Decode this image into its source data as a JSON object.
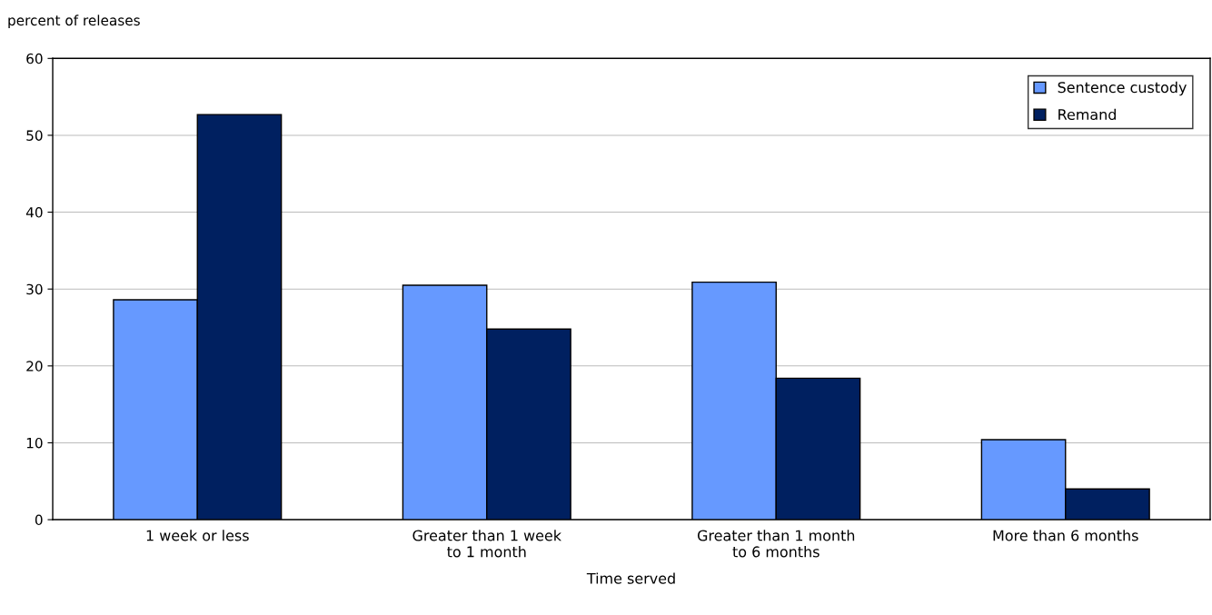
{
  "chart_data": {
    "type": "bar",
    "xlabel": "Time served",
    "ylabel": "percent of releases",
    "categories": [
      "1 week or less",
      "Greater than 1 week\nto 1 month",
      "Greater than 1 month\nto 6 months",
      "More than 6 months"
    ],
    "series": [
      {
        "name": "Sentence custody",
        "color": "#6699ff",
        "values": [
          28.6,
          30.5,
          30.9,
          10.4
        ]
      },
      {
        "name": "Remand",
        "color": "#002060",
        "values": [
          52.7,
          24.8,
          18.4,
          4.0
        ]
      }
    ],
    "ylim": [
      0,
      60
    ],
    "yticks": [
      0,
      10,
      20,
      30,
      40,
      50,
      60
    ],
    "grid": "y",
    "legend": "top right"
  }
}
